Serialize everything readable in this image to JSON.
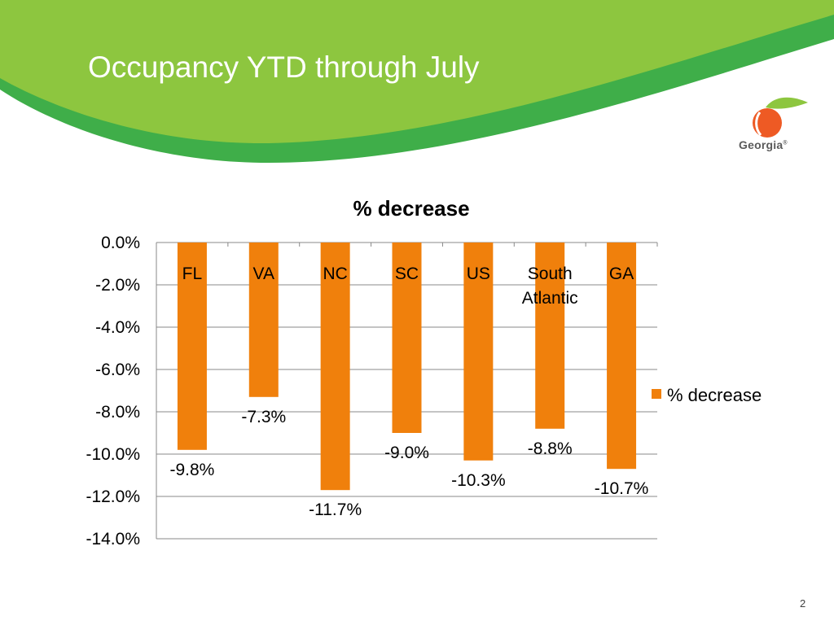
{
  "slide": {
    "title": "Occupancy YTD through July",
    "page_number": "2",
    "logo_text": "Georgia",
    "logo_mark": "®"
  },
  "colors": {
    "banner_light": "#8dc63f",
    "banner_dark": "#3fae49",
    "bar": "#f0800c",
    "logo_peach": "#ee5a24",
    "logo_leaf": "#8dc63f"
  },
  "chart_data": {
    "type": "bar",
    "title": "% decrease",
    "categories": [
      "FL",
      "VA",
      "NC",
      "SC",
      "US",
      "South Atlantic",
      "GA"
    ],
    "category_lines": [
      [
        "FL"
      ],
      [
        "VA"
      ],
      [
        "NC"
      ],
      [
        "SC"
      ],
      [
        "US"
      ],
      [
        "South",
        "Atlantic"
      ],
      [
        "GA"
      ]
    ],
    "series": [
      {
        "name": "% decrease",
        "values": [
          -9.8,
          -7.3,
          -11.7,
          -9.0,
          -10.3,
          -8.8,
          -10.7
        ],
        "labels": [
          "-9.8%",
          "-7.3%",
          "-11.7%",
          "-9.0%",
          "-10.3%",
          "-8.8%",
          "-10.7%"
        ]
      }
    ],
    "ylim": [
      -14,
      0
    ],
    "yticks": [
      0,
      -2,
      -4,
      -6,
      -8,
      -10,
      -12,
      -14
    ],
    "ytick_labels": [
      "0.0%",
      "-2.0%",
      "-4.0%",
      "-6.0%",
      "-8.0%",
      "-10.0%",
      "-12.0%",
      "-14.0%"
    ],
    "xlabel": "",
    "ylabel": "",
    "grid": true,
    "legend": "right"
  }
}
